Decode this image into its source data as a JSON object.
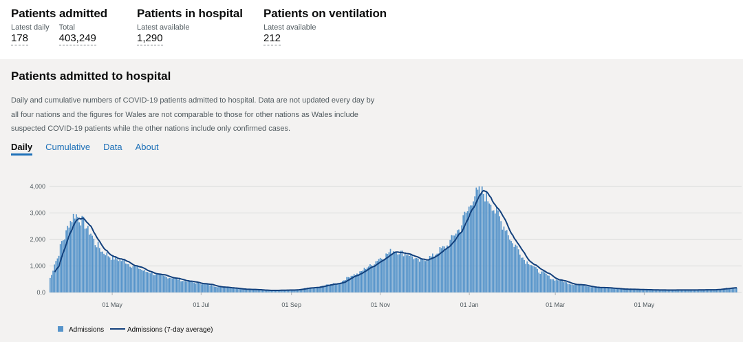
{
  "headlines": [
    {
      "title": "Patients admitted",
      "metrics": [
        {
          "label": "Latest daily",
          "value": "178"
        },
        {
          "label": "Total",
          "value": "403,249"
        }
      ]
    },
    {
      "title": "Patients in hospital",
      "metrics": [
        {
          "label": "Latest available",
          "value": "1,290"
        }
      ]
    },
    {
      "title": "Patients on ventilation",
      "metrics": [
        {
          "label": "Latest available",
          "value": "212"
        }
      ]
    }
  ],
  "card": {
    "title": "Patients admitted to hospital",
    "description": "Daily and cumulative numbers of COVID-19 patients admitted to hospital. Data are not updated every day by all four nations and the figures for Wales are not comparable to those for other nations as Wales include suspected COVID-19 patients while the other nations include only confirmed cases.",
    "tabs": [
      {
        "label": "Daily",
        "active": true
      },
      {
        "label": "Cumulative",
        "active": false
      },
      {
        "label": "Data",
        "active": false
      },
      {
        "label": "About",
        "active": false
      }
    ]
  },
  "chart_data": {
    "type": "bar",
    "title": "",
    "xlabel": "",
    "ylabel": "",
    "ylim": [
      0,
      4000
    ],
    "yticks": [
      "0.0",
      "1,000",
      "2,000",
      "3,000",
      "4,000"
    ],
    "ytick_values": [
      0,
      1000,
      2000,
      3000,
      4000
    ],
    "xticks": [
      "01 May",
      "01 Jul",
      "01 Sep",
      "01 Nov",
      "01 Jan",
      "01 Mar",
      "01 May"
    ],
    "xtick_dates": [
      "2020-05-01",
      "2020-07-01",
      "2020-09-01",
      "2020-11-01",
      "2021-01-01",
      "2021-03-01",
      "2021-05-01"
    ],
    "x_start": "2020-03-19",
    "x_end": "2021-07-04",
    "grid": true,
    "legend_position": "bottom-left",
    "anchors": [
      [
        "2020-03-19",
        550
      ],
      [
        "2020-03-23",
        1200
      ],
      [
        "2020-03-28",
        2000
      ],
      [
        "2020-04-02",
        2700
      ],
      [
        "2020-04-05",
        2950
      ],
      [
        "2020-04-10",
        2700
      ],
      [
        "2020-04-15",
        2300
      ],
      [
        "2020-04-20",
        1800
      ],
      [
        "2020-04-25",
        1500
      ],
      [
        "2020-05-01",
        1300
      ],
      [
        "2020-05-08",
        1200
      ],
      [
        "2020-05-15",
        1000
      ],
      [
        "2020-05-25",
        780
      ],
      [
        "2020-06-01",
        650
      ],
      [
        "2020-06-10",
        560
      ],
      [
        "2020-06-20",
        430
      ],
      [
        "2020-07-01",
        330
      ],
      [
        "2020-07-15",
        200
      ],
      [
        "2020-08-01",
        120
      ],
      [
        "2020-08-15",
        80
      ],
      [
        "2020-09-01",
        90
      ],
      [
        "2020-09-15",
        180
      ],
      [
        "2020-10-01",
        330
      ],
      [
        "2020-10-15",
        680
      ],
      [
        "2020-10-25",
        1000
      ],
      [
        "2020-11-01",
        1300
      ],
      [
        "2020-11-10",
        1580
      ],
      [
        "2020-11-20",
        1450
      ],
      [
        "2020-11-28",
        1180
      ],
      [
        "2020-12-05",
        1330
      ],
      [
        "2020-12-15",
        1680
      ],
      [
        "2020-12-25",
        2350
      ],
      [
        "2020-12-30",
        3000
      ],
      [
        "2021-01-05",
        3700
      ],
      [
        "2021-01-10",
        3780
      ],
      [
        "2021-01-15",
        3500
      ],
      [
        "2021-01-20",
        3000
      ],
      [
        "2021-01-25",
        2500
      ],
      [
        "2021-02-01",
        1800
      ],
      [
        "2021-02-10",
        1150
      ],
      [
        "2021-02-20",
        750
      ],
      [
        "2021-03-01",
        480
      ],
      [
        "2021-03-15",
        300
      ],
      [
        "2021-04-01",
        180
      ],
      [
        "2021-04-20",
        120
      ],
      [
        "2021-05-15",
        90
      ],
      [
        "2021-06-15",
        100
      ],
      [
        "2021-07-04",
        190
      ]
    ],
    "series": [
      {
        "name": "Admissions",
        "color": "#5694ca",
        "kind": "bar"
      },
      {
        "name": "Admissions (7-day average)",
        "color": "#12407c",
        "kind": "line"
      }
    ]
  }
}
